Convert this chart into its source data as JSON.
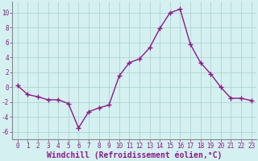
{
  "x": [
    0,
    1,
    2,
    3,
    4,
    5,
    6,
    7,
    8,
    9,
    10,
    11,
    12,
    13,
    14,
    15,
    16,
    17,
    18,
    19,
    20,
    21,
    22,
    23
  ],
  "y": [
    0.2,
    -1.0,
    -1.3,
    -1.7,
    -1.7,
    -2.2,
    -5.5,
    -3.3,
    -2.8,
    -2.4,
    1.5,
    3.3,
    3.8,
    5.3,
    7.9,
    10.0,
    10.5,
    5.8,
    3.3,
    1.8,
    0.0,
    -1.5,
    -1.5,
    -1.8
  ],
  "line_color": "#8b1a8b",
  "marker": "+",
  "marker_size": 4,
  "xlabel": "Windchill (Refroidissement éolien,°C)",
  "xlabel_fontsize": 7,
  "ylabel_ticks": [
    -6,
    -4,
    -2,
    0,
    2,
    4,
    6,
    8,
    10
  ],
  "xlim": [
    -0.5,
    23.5
  ],
  "ylim": [
    -7,
    11.5
  ],
  "background_color": "#d4f0f0",
  "grid_color": "#aacece",
  "spine_color": "#888888",
  "tick_color": "#8b1a8b",
  "tick_label_color": "#8b1a8b",
  "tick_fontsize": 5.5,
  "line_width": 1.0
}
